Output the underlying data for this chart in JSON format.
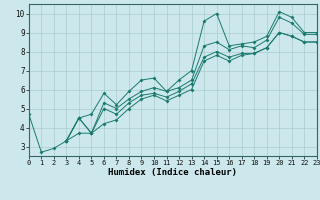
{
  "xlabel": "Humidex (Indice chaleur)",
  "xlim": [
    0,
    23
  ],
  "ylim": [
    2.5,
    10.5
  ],
  "yticks": [
    3,
    4,
    5,
    6,
    7,
    8,
    9,
    10
  ],
  "xticks": [
    0,
    1,
    2,
    3,
    4,
    5,
    6,
    7,
    8,
    9,
    10,
    11,
    12,
    13,
    14,
    15,
    16,
    17,
    18,
    19,
    20,
    21,
    22,
    23
  ],
  "bg_color": "#cce8ec",
  "grid_color": "#aacccc",
  "line_color": "#1a7a6e",
  "lines": [
    {
      "x": [
        0,
        1,
        2,
        3,
        4,
        5,
        6,
        7,
        8,
        9,
        10,
        11,
        12,
        13,
        14,
        15,
        16,
        17,
        18,
        19,
        20,
        21,
        22,
        23
      ],
      "y": [
        4.7,
        2.7,
        2.9,
        3.3,
        4.5,
        4.7,
        5.8,
        5.2,
        5.9,
        6.5,
        6.6,
        5.9,
        6.5,
        7.0,
        9.6,
        10.0,
        8.3,
        8.4,
        8.5,
        8.8,
        10.1,
        9.8,
        9.0,
        9.0
      ]
    },
    {
      "x": [
        3,
        4,
        5,
        6,
        7,
        8,
        9,
        10,
        11,
        12,
        13,
        14,
        15,
        16,
        17,
        18,
        19,
        20,
        21,
        22,
        23
      ],
      "y": [
        3.3,
        4.5,
        3.7,
        5.3,
        5.0,
        5.5,
        5.9,
        6.1,
        5.9,
        6.1,
        6.5,
        8.3,
        8.5,
        8.1,
        8.3,
        8.2,
        8.6,
        9.8,
        9.5,
        8.9,
        8.9
      ]
    },
    {
      "x": [
        3,
        4,
        5,
        6,
        7,
        8,
        9,
        10,
        11,
        12,
        13,
        14,
        15,
        16,
        17,
        18,
        19,
        20,
        21,
        22,
        23
      ],
      "y": [
        3.3,
        4.5,
        3.7,
        5.0,
        4.7,
        5.3,
        5.7,
        5.8,
        5.6,
        5.9,
        6.3,
        7.7,
        8.0,
        7.7,
        7.9,
        7.9,
        8.2,
        9.0,
        8.8,
        8.5,
        8.5
      ]
    },
    {
      "x": [
        3,
        4,
        5,
        6,
        7,
        8,
        9,
        10,
        11,
        12,
        13,
        14,
        15,
        16,
        17,
        18,
        19,
        20,
        21,
        22,
        23
      ],
      "y": [
        3.3,
        3.7,
        3.7,
        4.2,
        4.4,
        5.0,
        5.5,
        5.7,
        5.4,
        5.7,
        6.0,
        7.5,
        7.8,
        7.5,
        7.8,
        7.9,
        8.2,
        9.0,
        8.8,
        8.5,
        8.5
      ]
    }
  ]
}
